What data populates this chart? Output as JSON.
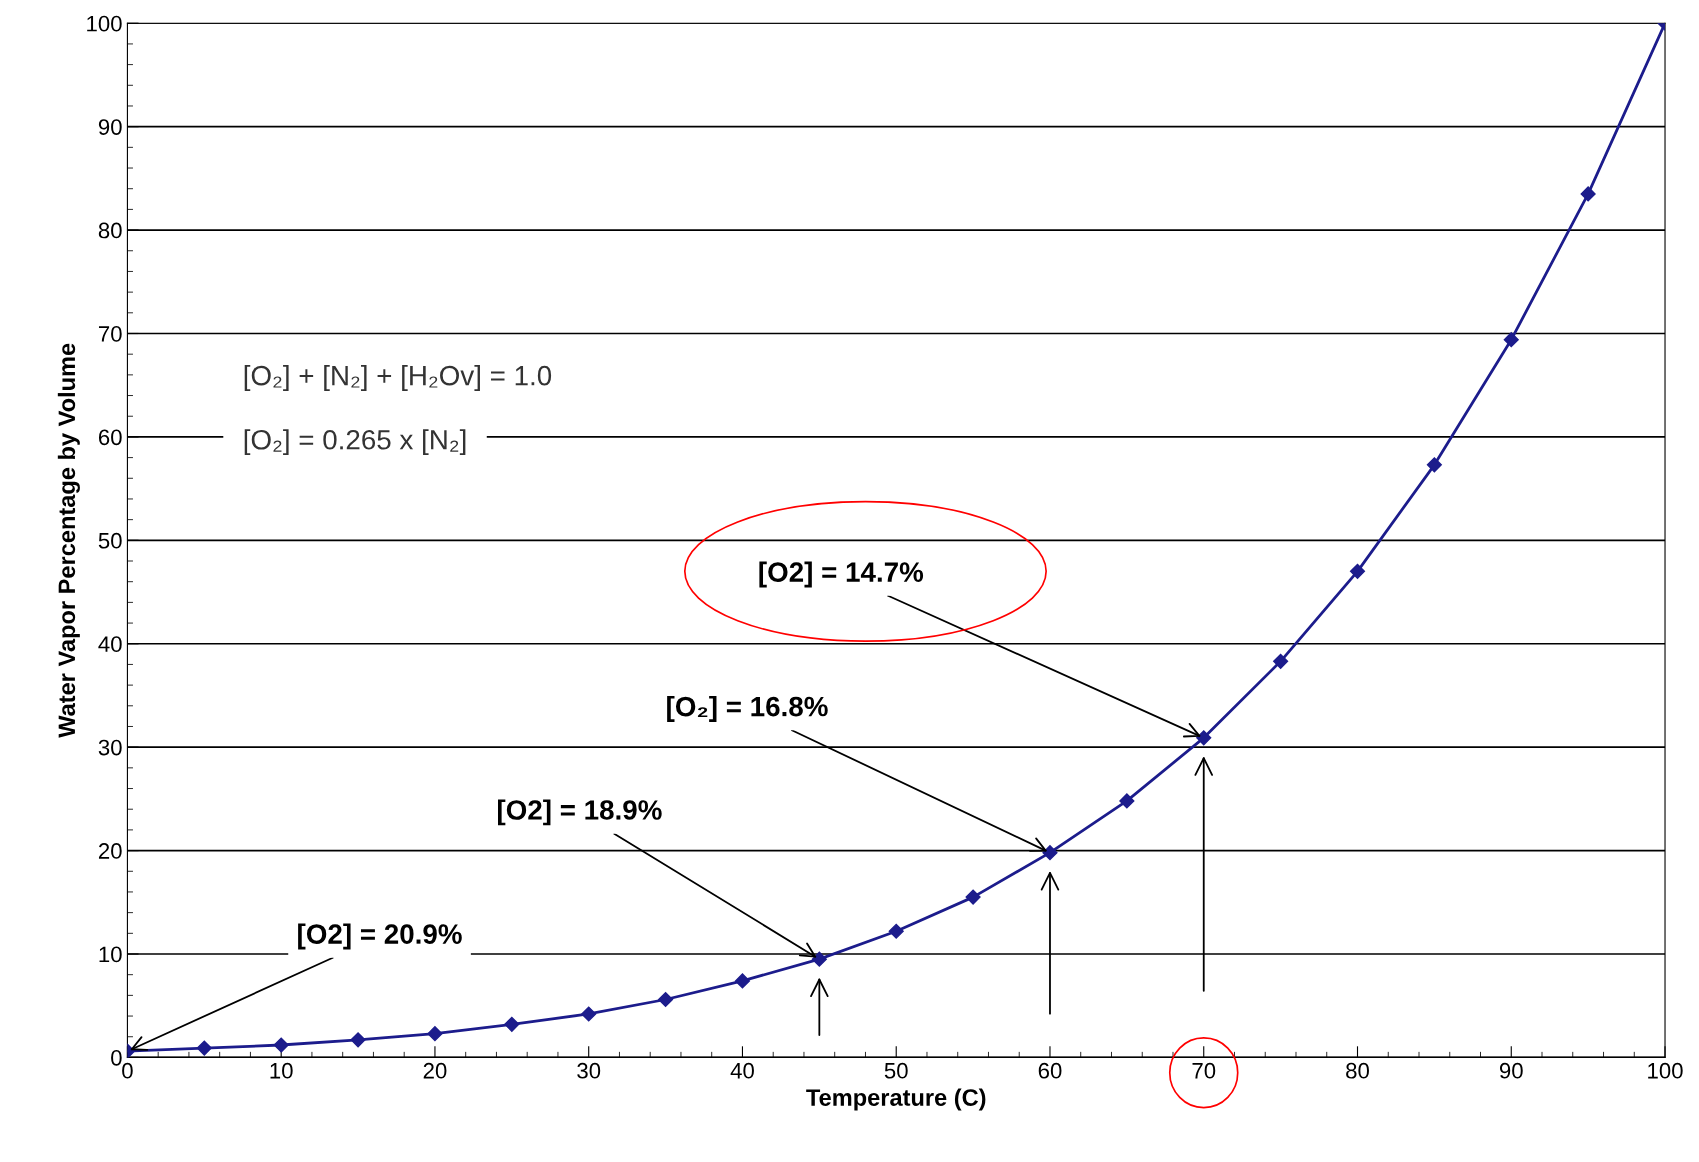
{
  "chart_data": {
    "type": "line",
    "xlabel": "Temperature (C)",
    "ylabel": "Water Vapor Percentage by Volume",
    "x": [
      0,
      5,
      10,
      15,
      20,
      25,
      30,
      35,
      40,
      45,
      50,
      55,
      60,
      65,
      70,
      75,
      80,
      85,
      90,
      95,
      100
    ],
    "series": [
      {
        "color": "#1c1c8c",
        "values": [
          0.6,
          0.9,
          1.2,
          1.7,
          2.3,
          3.2,
          4.2,
          5.6,
          7.4,
          9.5,
          12.2,
          15.5,
          19.8,
          24.8,
          30.9,
          38.3,
          47.0,
          57.3,
          69.4,
          83.5,
          100
        ]
      }
    ],
    "xlim": [
      0,
      100
    ],
    "ylim": [
      0,
      100
    ],
    "xticks": [
      0,
      10,
      20,
      30,
      40,
      50,
      60,
      70,
      80,
      90,
      100
    ],
    "yticks": [
      0,
      10,
      20,
      30,
      40,
      50,
      60,
      70,
      80,
      90,
      100
    ],
    "grid": "y",
    "marker": "diamond",
    "line_style": "solid",
    "legend": false,
    "annotations": [
      {
        "text": "[O2] = 20.9%",
        "x": 0,
        "y": 0.6
      },
      {
        "text": "[O2] = 18.9%",
        "x": 45,
        "y": 9.5
      },
      {
        "text": "[O₂] = 16.8%",
        "x": 60,
        "y": 19.8
      },
      {
        "text": "[O2] = 14.7%",
        "x": 70,
        "y": 30.9
      },
      "[O₂] + [N₂] + [H₂Ov] = 1.0",
      "[O₂] = 0.265 x [N₂]"
    ]
  }
}
